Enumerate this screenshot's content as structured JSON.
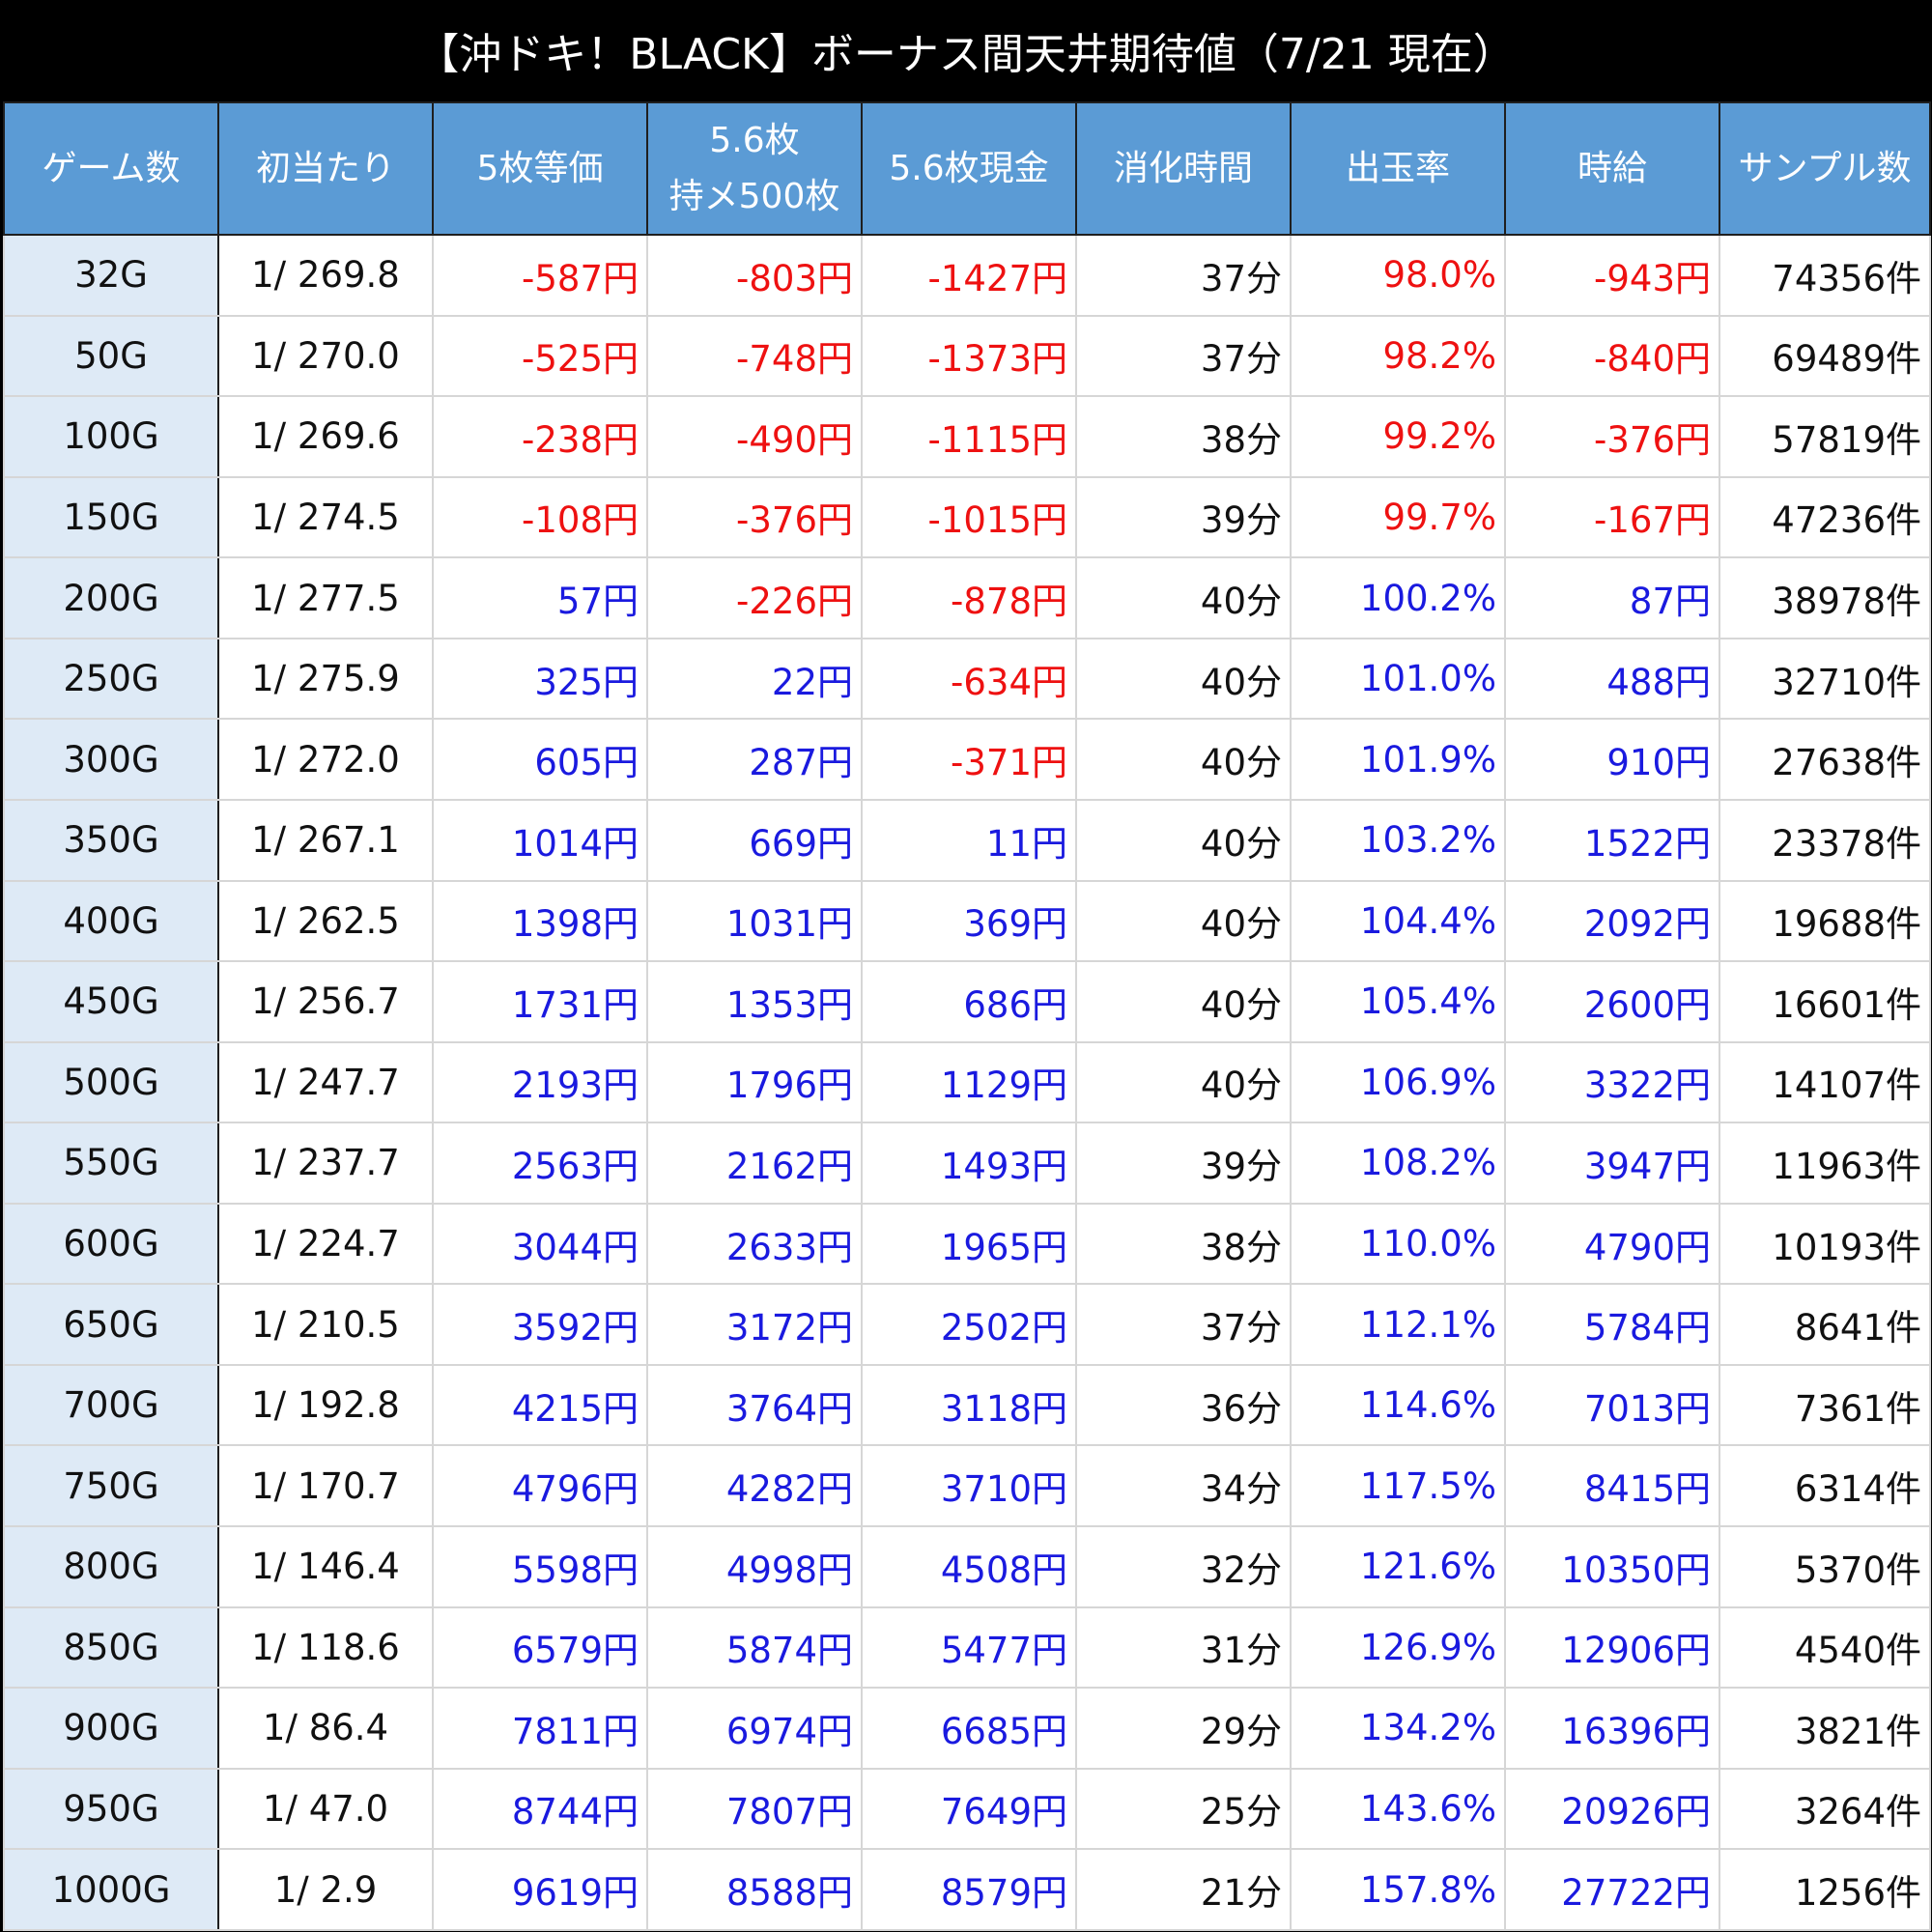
{
  "title": "【沖ドキ！BLACK】ボーナス間天井期待値（7/21 現在）",
  "colors": {
    "header_bg": "#5b9bd5",
    "first_col_bg": "#deeaf6",
    "negative": "#ee1111",
    "positive": "#1a1adf"
  },
  "chart_data": {
    "type": "table",
    "title": "【沖ドキ！BLACK】ボーナス間天井期待値（7/21 現在）",
    "columns": [
      "ゲーム数",
      "初当たり",
      "5枚等価",
      "5.6枚\n持メ500枚",
      "5.6枚現金",
      "消化時間",
      "出玉率",
      "時給",
      "サンプル数"
    ],
    "rows": [
      [
        "32G",
        "1/ 269.8",
        "-587円",
        "-803円",
        "-1427円",
        "37分",
        "98.0%",
        "-943円",
        "74356件"
      ],
      [
        "50G",
        "1/ 270.0",
        "-525円",
        "-748円",
        "-1373円",
        "37分",
        "98.2%",
        "-840円",
        "69489件"
      ],
      [
        "100G",
        "1/ 269.6",
        "-238円",
        "-490円",
        "-1115円",
        "38分",
        "99.2%",
        "-376円",
        "57819件"
      ],
      [
        "150G",
        "1/ 274.5",
        "-108円",
        "-376円",
        "-1015円",
        "39分",
        "99.7%",
        "-167円",
        "47236件"
      ],
      [
        "200G",
        "1/ 277.5",
        "57円",
        "-226円",
        "-878円",
        "40分",
        "100.2%",
        "87円",
        "38978件"
      ],
      [
        "250G",
        "1/ 275.9",
        "325円",
        "22円",
        "-634円",
        "40分",
        "101.0%",
        "488円",
        "32710件"
      ],
      [
        "300G",
        "1/ 272.0",
        "605円",
        "287円",
        "-371円",
        "40分",
        "101.9%",
        "910円",
        "27638件"
      ],
      [
        "350G",
        "1/ 267.1",
        "1014円",
        "669円",
        "11円",
        "40分",
        "103.2%",
        "1522円",
        "23378件"
      ],
      [
        "400G",
        "1/ 262.5",
        "1398円",
        "1031円",
        "369円",
        "40分",
        "104.4%",
        "2092円",
        "19688件"
      ],
      [
        "450G",
        "1/ 256.7",
        "1731円",
        "1353円",
        "686円",
        "40分",
        "105.4%",
        "2600円",
        "16601件"
      ],
      [
        "500G",
        "1/ 247.7",
        "2193円",
        "1796円",
        "1129円",
        "40分",
        "106.9%",
        "3322円",
        "14107件"
      ],
      [
        "550G",
        "1/ 237.7",
        "2563円",
        "2162円",
        "1493円",
        "39分",
        "108.2%",
        "3947円",
        "11963件"
      ],
      [
        "600G",
        "1/ 224.7",
        "3044円",
        "2633円",
        "1965円",
        "38分",
        "110.0%",
        "4790円",
        "10193件"
      ],
      [
        "650G",
        "1/ 210.5",
        "3592円",
        "3172円",
        "2502円",
        "37分",
        "112.1%",
        "5784円",
        "8641件"
      ],
      [
        "700G",
        "1/ 192.8",
        "4215円",
        "3764円",
        "3118円",
        "36分",
        "114.6%",
        "7013円",
        "7361件"
      ],
      [
        "750G",
        "1/ 170.7",
        "4796円",
        "4282円",
        "3710円",
        "34分",
        "117.5%",
        "8415円",
        "6314件"
      ],
      [
        "800G",
        "1/ 146.4",
        "5598円",
        "4998円",
        "4508円",
        "32分",
        "121.6%",
        "10350円",
        "5370件"
      ],
      [
        "850G",
        "1/ 118.6",
        "6579円",
        "5874円",
        "5477円",
        "31分",
        "126.9%",
        "12906円",
        "4540件"
      ],
      [
        "900G",
        "1/ 86.4",
        "7811円",
        "6974円",
        "6685円",
        "29分",
        "134.2%",
        "16396円",
        "3821件"
      ],
      [
        "950G",
        "1/ 47.0",
        "8744円",
        "7807円",
        "7649円",
        "25分",
        "143.6%",
        "20926円",
        "3264件"
      ],
      [
        "1000G",
        "1/ 2.9",
        "9619円",
        "8588円",
        "8579円",
        "21分",
        "157.8%",
        "27722円",
        "1256件"
      ]
    ]
  }
}
